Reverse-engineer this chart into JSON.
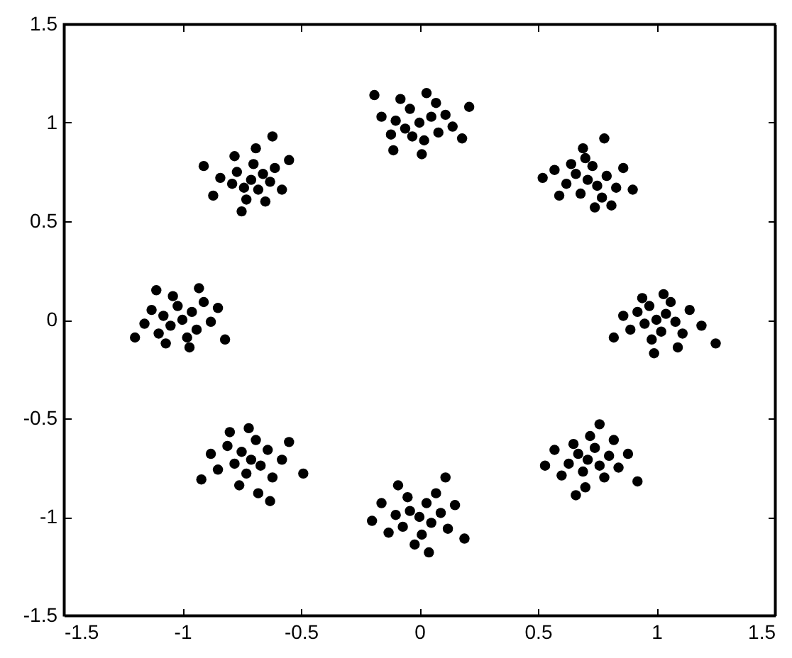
{
  "chart_data": {
    "type": "scatter",
    "marker": "circle",
    "xlim": [
      -1.5,
      1.5
    ],
    "ylim": [
      -1.5,
      1.5
    ],
    "xticks": [
      -1.5,
      -1,
      -0.5,
      0,
      0.5,
      1,
      1.5
    ],
    "yticks": [
      -1.5,
      -1,
      -0.5,
      0,
      0.5,
      1,
      1.5
    ],
    "series": [
      {
        "color": "#000000",
        "x": [
          0.0,
          0.05,
          -0.06,
          0.08,
          -0.04,
          0.11,
          -0.1,
          0.02,
          -0.03,
          0.07,
          -0.12,
          0.14,
          -0.08,
          0.03,
          -0.16,
          0.18,
          0.01,
          -0.11,
          0.21,
          -0.19,
          0.71,
          0.75,
          0.66,
          0.73,
          0.68,
          0.79,
          0.62,
          0.77,
          0.7,
          0.64,
          0.83,
          0.59,
          0.74,
          0.86,
          0.57,
          0.69,
          0.81,
          0.9,
          0.52,
          0.78,
          1.0,
          1.04,
          0.95,
          1.02,
          0.97,
          1.08,
          0.92,
          1.06,
          0.98,
          1.11,
          0.89,
          1.03,
          0.94,
          1.14,
          0.86,
          1.09,
          0.99,
          1.19,
          0.82,
          1.25,
          0.71,
          0.67,
          0.76,
          0.69,
          0.74,
          0.63,
          0.8,
          0.65,
          0.78,
          0.72,
          0.6,
          0.84,
          0.7,
          0.57,
          0.82,
          0.66,
          0.88,
          0.53,
          0.76,
          0.92,
          0.0,
          -0.04,
          0.05,
          -0.07,
          0.03,
          0.09,
          -0.1,
          0.01,
          -0.05,
          0.12,
          -0.13,
          0.07,
          -0.02,
          0.15,
          -0.16,
          0.04,
          -0.09,
          0.19,
          -0.2,
          0.11,
          -0.71,
          -0.67,
          -0.75,
          -0.73,
          -0.64,
          -0.78,
          -0.69,
          -0.62,
          -0.81,
          -0.76,
          -0.58,
          -0.85,
          -0.68,
          -0.72,
          -0.55,
          -0.88,
          -0.63,
          -0.8,
          -0.49,
          -0.92,
          -1.0,
          -0.96,
          -1.05,
          -1.02,
          -0.94,
          -1.08,
          -0.98,
          -1.1,
          -0.91,
          -1.04,
          -0.88,
          -1.13,
          -0.97,
          -1.07,
          -0.85,
          -1.16,
          -0.93,
          -1.11,
          -0.82,
          -1.2,
          -0.71,
          -0.74,
          -0.66,
          -0.68,
          -0.77,
          -0.63,
          -0.79,
          -0.7,
          -0.73,
          -0.61,
          -0.84,
          -0.65,
          -0.78,
          -0.58,
          -0.87,
          -0.69,
          -0.75,
          -0.55,
          -0.91,
          -0.62
        ],
        "values": [
          1.0,
          1.03,
          0.97,
          0.95,
          1.07,
          1.04,
          1.01,
          0.91,
          0.93,
          1.1,
          0.94,
          0.98,
          1.12,
          1.15,
          1.03,
          0.92,
          0.84,
          0.86,
          1.08,
          1.14,
          0.71,
          0.68,
          0.74,
          0.78,
          0.64,
          0.73,
          0.69,
          0.62,
          0.82,
          0.79,
          0.67,
          0.63,
          0.57,
          0.77,
          0.76,
          0.87,
          0.58,
          0.66,
          0.72,
          0.92,
          0.0,
          0.03,
          -0.02,
          -0.06,
          0.07,
          -0.01,
          0.04,
          0.09,
          -0.1,
          -0.07,
          -0.05,
          0.13,
          0.11,
          0.05,
          0.02,
          -0.14,
          -0.17,
          -0.03,
          -0.09,
          -0.12,
          -0.71,
          -0.68,
          -0.74,
          -0.77,
          -0.65,
          -0.73,
          -0.69,
          -0.63,
          -0.8,
          -0.59,
          -0.79,
          -0.75,
          -0.85,
          -0.66,
          -0.61,
          -0.89,
          -0.68,
          -0.74,
          -0.53,
          -0.82,
          -1.0,
          -0.97,
          -1.03,
          -1.05,
          -0.93,
          -0.98,
          -0.99,
          -1.09,
          -0.9,
          -1.06,
          -1.08,
          -0.88,
          -1.14,
          -0.94,
          -0.93,
          -1.18,
          -0.84,
          -1.11,
          -1.02,
          -0.8,
          -0.71,
          -0.74,
          -0.67,
          -0.78,
          -0.66,
          -0.73,
          -0.61,
          -0.8,
          -0.64,
          -0.84,
          -0.71,
          -0.76,
          -0.88,
          -0.55,
          -0.62,
          -0.68,
          -0.92,
          -0.57,
          -0.78,
          -0.81,
          0.0,
          0.04,
          -0.03,
          0.07,
          -0.05,
          0.02,
          -0.09,
          -0.07,
          0.09,
          0.12,
          -0.01,
          0.05,
          -0.14,
          -0.12,
          0.06,
          -0.02,
          0.16,
          0.15,
          -0.1,
          -0.09,
          0.71,
          0.67,
          0.74,
          0.66,
          0.75,
          0.7,
          0.69,
          0.79,
          0.61,
          0.77,
          0.72,
          0.6,
          0.83,
          0.66,
          0.63,
          0.87,
          0.55,
          0.81,
          0.78,
          0.93
        ]
      }
    ]
  }
}
